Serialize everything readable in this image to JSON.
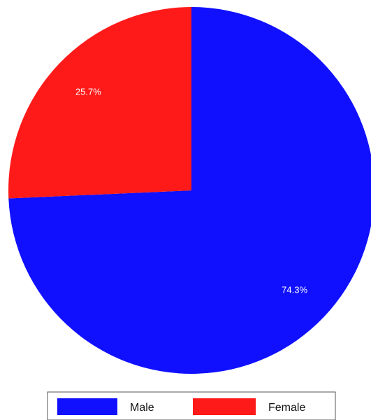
{
  "chart_data": {
    "type": "pie",
    "slices": [
      {
        "label": "Male",
        "value": 74.3,
        "display": "74.3%",
        "color": "#1010ff"
      },
      {
        "label": "Female",
        "value": 25.7,
        "display": "25.7%",
        "color": "#ff1a1a"
      }
    ],
    "legend": {
      "placement": "bottom",
      "entries": [
        "Male",
        "Female"
      ]
    }
  }
}
